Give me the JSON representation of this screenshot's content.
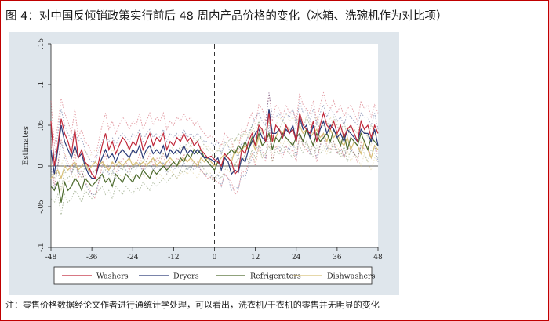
{
  "header": {
    "title": "图 4：对中国反倾销政策实行前后 48 周内产品价格的变化（冰箱、洗碗机作为对比项）"
  },
  "footer": {
    "note": "注：零售价格数据经论文作者进行通统计学处理，可以看出，洗衣机/干衣机的零售并无明显的变化"
  },
  "colors": {
    "frame": "#c00000",
    "plot_background": "#dfe6ec",
    "plot_area": "#ffffff"
  },
  "chart_data": {
    "type": "line",
    "title": "",
    "xlabel": "",
    "ylabel": "Estimates",
    "xlim": [
      -48,
      48
    ],
    "ylim": [
      -0.1,
      0.15
    ],
    "xticks": [
      -48,
      -36,
      -24,
      -12,
      0,
      12,
      24,
      36,
      48
    ],
    "xtick_labels": [
      "-48",
      "-36",
      "-24",
      "-12",
      "0",
      "12",
      "24",
      "36",
      "48"
    ],
    "yticks": [
      -0.1,
      -0.05,
      0,
      0.05,
      0.1,
      0.15
    ],
    "ytick_labels": [
      "-.1",
      "-.05",
      "0",
      ".05",
      ".1",
      ".15"
    ],
    "event_line_x": 0,
    "reference_line_y": 0,
    "grid": false,
    "legend_position": "bottom",
    "x": [
      -48,
      -47,
      -46,
      -45,
      -44,
      -43,
      -42,
      -41,
      -40,
      -39,
      -38,
      -37,
      -36,
      -35,
      -34,
      -33,
      -32,
      -31,
      -30,
      -29,
      -28,
      -27,
      -26,
      -25,
      -24,
      -23,
      -22,
      -21,
      -20,
      -19,
      -18,
      -17,
      -16,
      -15,
      -14,
      -13,
      -12,
      -11,
      -10,
      -9,
      -8,
      -7,
      -6,
      -5,
      -4,
      -3,
      -2,
      -1,
      0,
      1,
      2,
      3,
      4,
      5,
      6,
      7,
      8,
      9,
      10,
      11,
      12,
      13,
      14,
      15,
      16,
      17,
      18,
      19,
      20,
      21,
      22,
      23,
      24,
      25,
      26,
      27,
      28,
      29,
      30,
      31,
      32,
      33,
      34,
      35,
      36,
      37,
      38,
      39,
      40,
      41,
      42,
      43,
      44,
      45,
      46,
      47,
      48
    ],
    "series": [
      {
        "name": "Washers",
        "color": "#c0283a",
        "values": [
          0.055,
          0.0,
          0.025,
          0.058,
          0.04,
          0.03,
          0.015,
          0.045,
          0.01,
          0.02,
          0.005,
          0.0,
          -0.01,
          -0.015,
          0.005,
          0.025,
          0.04,
          0.02,
          0.03,
          0.015,
          0.025,
          0.035,
          0.03,
          0.02,
          0.03,
          0.025,
          0.04,
          0.02,
          0.03,
          0.04,
          0.025,
          0.035,
          0.03,
          0.04,
          0.02,
          0.03,
          0.025,
          0.035,
          0.03,
          0.04,
          0.03,
          0.035,
          0.025,
          0.03,
          0.02,
          0.015,
          0.01,
          0.012,
          0.008,
          0.005,
          0.0,
          0.015,
          0.01,
          0.005,
          -0.01,
          -0.005,
          0.02,
          0.015,
          0.03,
          0.04,
          0.025,
          0.05,
          0.045,
          0.03,
          0.065,
          0.03,
          0.05,
          0.045,
          0.035,
          0.05,
          0.04,
          0.045,
          0.03,
          0.065,
          0.05,
          0.045,
          0.04,
          0.055,
          0.03,
          0.05,
          0.065,
          0.05,
          0.045,
          0.055,
          0.04,
          0.05,
          0.035,
          0.045,
          0.05,
          0.04,
          0.03,
          0.055,
          0.045,
          0.05,
          0.035,
          0.05,
          0.04
        ]
      },
      {
        "name": "Dryers",
        "color": "#2b3a78",
        "values": [
          0.02,
          -0.01,
          0.02,
          0.05,
          0.03,
          0.02,
          0.01,
          0.025,
          0.01,
          0.015,
          0.0,
          -0.01,
          -0.015,
          -0.015,
          0.0,
          0.01,
          0.02,
          0.01,
          0.015,
          0.005,
          0.015,
          0.02,
          0.015,
          0.01,
          0.02,
          0.015,
          0.025,
          0.01,
          0.02,
          0.025,
          0.015,
          0.02,
          0.015,
          0.025,
          0.01,
          0.02,
          0.015,
          0.02,
          0.015,
          0.025,
          0.015,
          0.02,
          0.015,
          0.02,
          0.015,
          0.01,
          0.01,
          0.008,
          0.005,
          0.01,
          -0.005,
          0.01,
          0.005,
          -0.01,
          -0.005,
          -0.008,
          0.01,
          0.005,
          0.02,
          0.03,
          0.04,
          0.045,
          0.035,
          0.03,
          0.07,
          0.04,
          0.04,
          0.045,
          0.035,
          0.045,
          0.04,
          0.05,
          0.03,
          0.06,
          0.045,
          0.05,
          0.035,
          0.05,
          0.03,
          0.045,
          0.055,
          0.04,
          0.05,
          0.045,
          0.035,
          0.04,
          0.03,
          0.045,
          0.04,
          0.035,
          0.03,
          0.045,
          0.04,
          0.04,
          0.03,
          0.045,
          0.025
        ]
      },
      {
        "name": "Refrigerators",
        "color": "#4d6b2e",
        "values": [
          -0.025,
          -0.03,
          -0.02,
          -0.045,
          -0.02,
          -0.03,
          -0.025,
          -0.015,
          -0.02,
          -0.03,
          -0.015,
          -0.02,
          -0.025,
          -0.02,
          -0.015,
          -0.01,
          -0.02,
          -0.015,
          -0.025,
          -0.01,
          -0.015,
          -0.02,
          -0.01,
          -0.015,
          -0.02,
          -0.01,
          -0.015,
          -0.005,
          -0.01,
          -0.015,
          -0.005,
          -0.01,
          -0.005,
          0.0,
          -0.005,
          0.0,
          0.005,
          0.0,
          0.01,
          0.005,
          0.015,
          0.01,
          0.02,
          0.015,
          0.02,
          0.01,
          0.005,
          0.0,
          -0.005,
          0.005,
          0.0,
          0.01,
          0.015,
          0.02,
          0.015,
          0.025,
          0.02,
          0.03,
          0.02,
          0.035,
          0.025,
          0.04,
          0.025,
          0.03,
          0.04,
          0.02,
          0.035,
          0.03,
          0.04,
          0.035,
          0.03,
          0.025,
          0.035,
          0.04,
          0.03,
          0.045,
          0.035,
          0.025,
          0.04,
          0.03,
          0.035,
          0.04,
          0.03,
          0.045,
          0.035,
          0.025,
          0.04,
          0.02,
          0.035,
          0.03,
          0.025,
          0.04,
          0.03,
          0.02,
          0.035,
          0.03,
          0.025
        ]
      },
      {
        "name": "Dishwashers",
        "color": "#d8c078",
        "values": [
          -0.015,
          -0.01,
          -0.005,
          -0.015,
          0.0,
          -0.005,
          0.0,
          0.005,
          -0.005,
          0.0,
          0.005,
          -0.005,
          0.0,
          0.005,
          0.0,
          0.005,
          0.0,
          -0.005,
          0.005,
          0.0,
          0.005,
          0.0,
          0.005,
          0.01,
          0.0,
          0.005,
          0.0,
          0.005,
          0.0,
          0.005,
          0.01,
          0.0,
          0.005,
          0.0,
          0.005,
          0.01,
          0.005,
          0.0,
          0.005,
          0.01,
          0.005,
          0.01,
          0.005,
          0.0,
          0.01,
          0.005,
          0.01,
          0.005,
          0.0,
          0.005,
          0.01,
          0.015,
          0.01,
          0.005,
          0.02,
          0.015,
          0.02,
          0.025,
          0.02,
          0.03,
          0.02,
          0.035,
          0.025,
          0.03,
          0.04,
          0.03,
          0.035,
          0.045,
          0.04,
          0.05,
          0.04,
          0.045,
          0.035,
          0.05,
          0.04,
          0.045,
          0.035,
          0.04,
          0.045,
          0.035,
          0.04,
          0.03,
          0.045,
          0.035,
          0.04,
          0.03,
          0.025,
          0.035,
          0.02,
          0.03,
          0.025,
          0.015,
          0.03,
          0.02,
          0.01,
          0.025,
          0.02
        ]
      }
    ],
    "confidence_band_offset": [
      0.025,
      0.02,
      0.015,
      0.015
    ]
  }
}
